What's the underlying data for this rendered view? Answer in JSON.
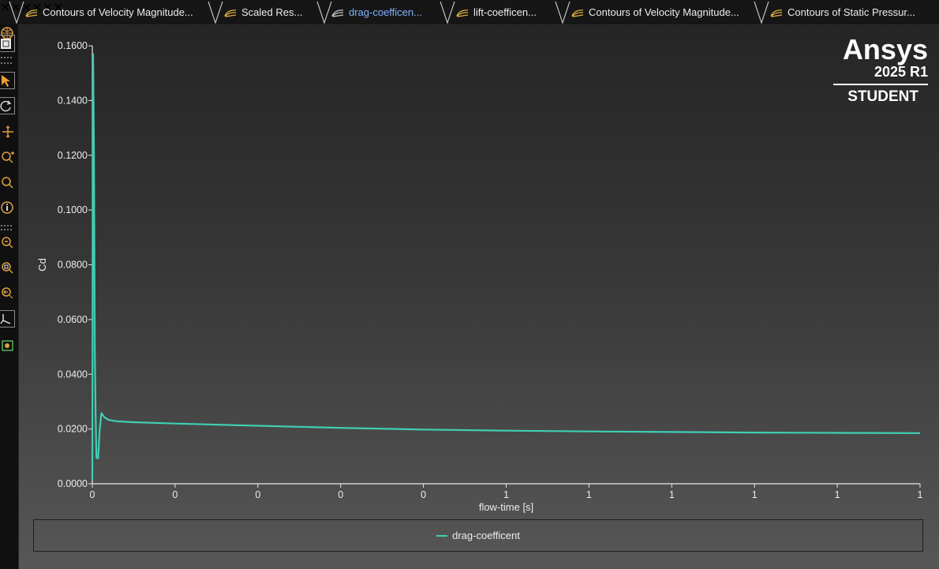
{
  "tabs": [
    {
      "label": "Contours of Velocity Magnitude...",
      "active": false
    },
    {
      "label": "Scaled Res...",
      "active": false
    },
    {
      "label": "drag-coefficen...",
      "active": true
    },
    {
      "label": "lift-coefficen...",
      "active": false
    },
    {
      "label": "Contours of Velocity Magnitude...",
      "active": false
    },
    {
      "label": "Contours of Static Pressur...",
      "active": false
    }
  ],
  "tab_close_glyph": "✕",
  "toolbar": {
    "icons": [
      "mesh-sphere-icon",
      "fit-view-icon",
      "select-pointer-icon",
      "rotate-icon",
      "pan-icon",
      "zoom-in-out-icon",
      "zoom-icon",
      "info-icon",
      "zoom-fit-icon",
      "zoom-box-icon",
      "zoom-previous-icon",
      "axes-icon",
      "view-visibility-icon"
    ]
  },
  "logo": {
    "brand": "Ansys",
    "version": "2025 R1",
    "edition": "STUDENT"
  },
  "colors": {
    "line": "#3fcfb4",
    "axis": "#e8e8e8",
    "text": "#ececec",
    "active_tab": "#7fb4ff"
  },
  "chart_data": {
    "type": "line",
    "xlabel": "flow-time [s]",
    "ylabel": "Cd",
    "ylim": [
      0,
      0.16
    ],
    "yticks": [
      "0.0000",
      "0.0200",
      "0.0400",
      "0.0600",
      "0.0800",
      "0.1000",
      "0.1200",
      "0.1400",
      "0.1600"
    ],
    "xticks": [
      "0",
      "0",
      "0",
      "0",
      "0",
      "1",
      "1",
      "1",
      "1",
      "1",
      "1"
    ],
    "xlim": [
      0,
      1
    ],
    "grid": false,
    "legend": "bottom",
    "series": [
      {
        "name": "drag-coefficent",
        "x": [
          0,
          0.001,
          0.002,
          0.003,
          0.004,
          0.005,
          0.007,
          0.009,
          0.011,
          0.015,
          0.02,
          0.03,
          0.05,
          0.1,
          0.2,
          0.3,
          0.4,
          0.5,
          0.6,
          0.7,
          0.8,
          0.9,
          1.0
        ],
        "y": [
          0.0015,
          0.157,
          0.12,
          0.05,
          0.025,
          0.0095,
          0.0093,
          0.02,
          0.0258,
          0.0242,
          0.0233,
          0.0228,
          0.0225,
          0.022,
          0.0212,
          0.0204,
          0.0198,
          0.0194,
          0.0191,
          0.0189,
          0.0187,
          0.0186,
          0.0185
        ]
      }
    ]
  }
}
